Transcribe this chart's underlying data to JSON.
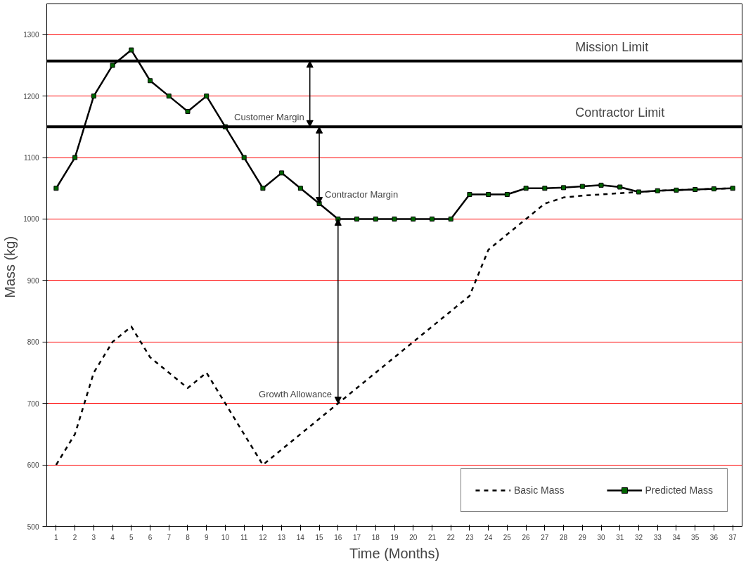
{
  "chart_data": {
    "type": "line",
    "xlabel": "Time (Months)",
    "ylabel": "Mass  (kg)",
    "x": [
      1,
      2,
      3,
      4,
      5,
      6,
      7,
      8,
      9,
      10,
      11,
      12,
      13,
      14,
      15,
      16,
      17,
      18,
      19,
      20,
      21,
      22,
      23,
      24,
      25,
      26,
      27,
      28,
      29,
      30,
      31,
      32,
      33,
      34,
      35,
      36,
      37
    ],
    "xlim": [
      0.5,
      37.5
    ],
    "xticks": [
      1,
      2,
      3,
      4,
      5,
      6,
      7,
      8,
      9,
      10,
      11,
      12,
      13,
      14,
      15,
      16,
      17,
      18,
      19,
      20,
      21,
      22,
      23,
      24,
      25,
      26,
      27,
      28,
      29,
      30,
      31,
      32,
      33,
      34,
      35,
      36,
      37
    ],
    "series": [
      {
        "name": "Basic Mass",
        "color": "#000000",
        "line_style": "dashed",
        "marker": "none",
        "values": [
          600,
          650,
          750,
          800,
          825,
          775,
          750,
          725,
          750,
          700,
          650,
          600,
          625,
          650,
          675,
          700,
          725,
          750,
          775,
          800,
          825,
          850,
          875,
          950,
          975,
          1000,
          1025,
          1035,
          1038,
          1040,
          1042,
          1044,
          1046,
          1047,
          1048,
          1049,
          1050
        ]
      },
      {
        "name": "Predicted Mass",
        "color": "#000000",
        "line_style": "solid",
        "marker": "square",
        "values": [
          1050,
          1100,
          1200,
          1250,
          1275,
          1225,
          1200,
          1175,
          1200,
          1150,
          1100,
          1050,
          1075,
          1050,
          1025,
          1000,
          1000,
          1000,
          1000,
          1000,
          1000,
          1000,
          1040,
          1040,
          1040,
          1050,
          1050,
          1051,
          1053,
          1055,
          1052,
          1044,
          1046,
          1047,
          1048,
          1049,
          1050
        ]
      }
    ],
    "ylim": [
      500,
      1350
    ],
    "yticks": [
      500,
      600,
      700,
      800,
      900,
      1000,
      1100,
      1200,
      1300
    ],
    "grid": "y",
    "ref_lines": [
      {
        "axis": "y",
        "value": 1257,
        "label": "Mission Limit",
        "color": "#000000"
      },
      {
        "axis": "y",
        "value": 1150,
        "label": "Contractor Limit",
        "color": "#000000"
      }
    ],
    "annotations": [
      {
        "text": "Customer Margin",
        "x": 14.5,
        "y": 1150
      },
      {
        "text": "Contractor Margin",
        "x": 15,
        "y": 1025
      },
      {
        "text": "Growth Allowance",
        "x": 16,
        "y": 700
      }
    ],
    "legend": "bottom right"
  }
}
